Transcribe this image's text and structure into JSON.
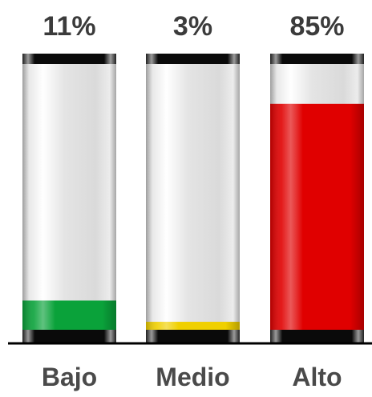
{
  "chart_data": {
    "type": "bar",
    "categories": [
      "Bajo",
      "Medio",
      "Alto"
    ],
    "values": [
      11,
      3,
      85
    ],
    "labels": [
      "11%",
      "3%",
      "85%"
    ],
    "unit": "%",
    "ylim": [
      0,
      100
    ],
    "fill_colors": [
      "#0aa23a",
      "#f0d000",
      "#e00000"
    ],
    "grid": false,
    "legend": "none"
  }
}
